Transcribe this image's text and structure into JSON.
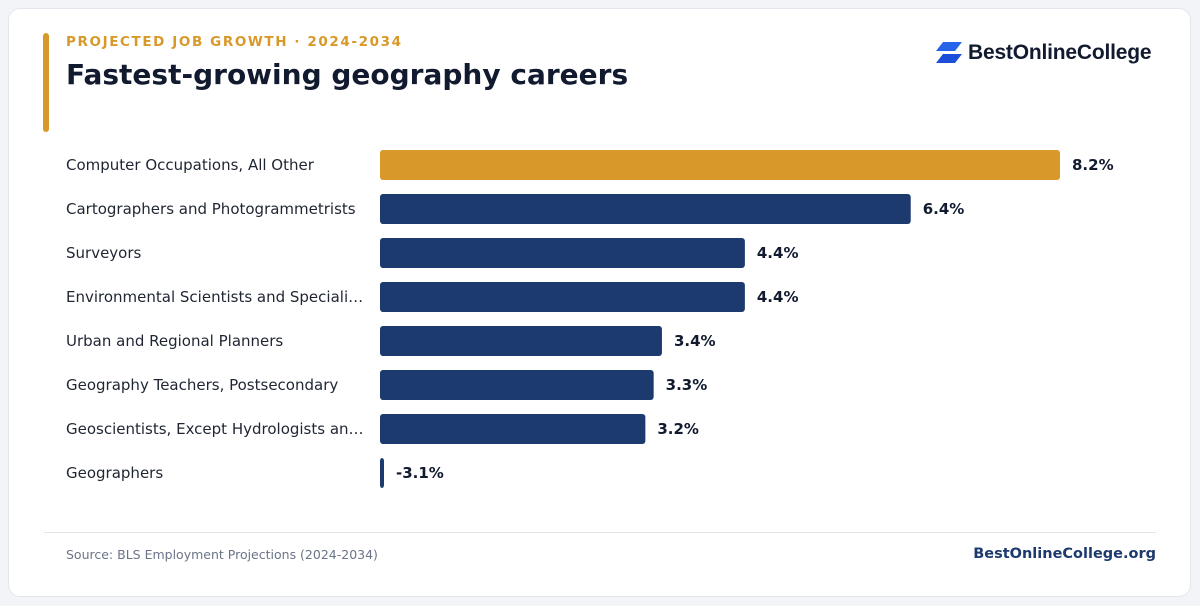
{
  "header": {
    "eyebrow": "PROJECTED JOB GROWTH · 2024-2034",
    "title": "Fastest-growing geography careers"
  },
  "brand": {
    "logo_text": "BestOnlineCollege",
    "logo_icon": "stacked-parallelogram-logo-icon",
    "logo_color": "#2563eb"
  },
  "chart_data": {
    "type": "bar",
    "orientation": "horizontal",
    "title": "Fastest-growing geography careers",
    "categories": [
      "Computer Occupations, All Other",
      "Cartographers and Photogrammetrists",
      "Surveyors",
      "Environmental Scientists and Speciali…",
      "Urban and Regional Planners",
      "Geography Teachers, Postsecondary",
      "Geoscientists, Except Hydrologists an…",
      "Geographers"
    ],
    "values": [
      8.2,
      6.4,
      4.4,
      4.4,
      3.4,
      3.3,
      3.2,
      -3.1
    ],
    "value_labels": [
      "8.2%",
      "6.4%",
      "4.4%",
      "4.4%",
      "3.4%",
      "3.3%",
      "3.2%",
      "-3.1%"
    ],
    "unit": "%",
    "xlim": [
      0,
      8.2
    ],
    "grid": false,
    "legend": "none",
    "colors": {
      "highlight": "#d9982a",
      "default": "#1d3a6e"
    },
    "highlight_index": 0
  },
  "footer": {
    "source": "Source: BLS Employment Projections (2024-2034)",
    "brand": "BestOnlineCollege.org"
  }
}
